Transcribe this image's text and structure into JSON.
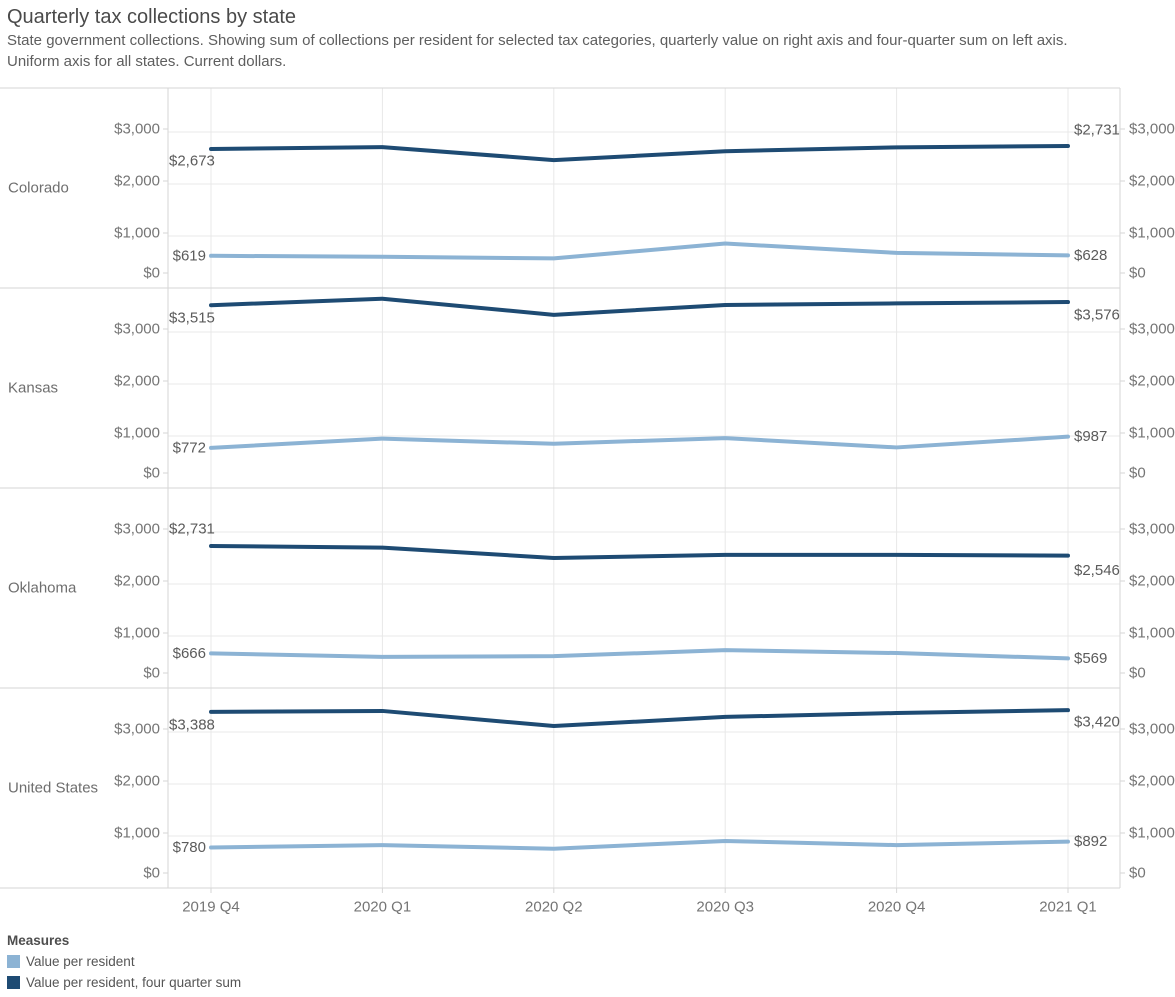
{
  "header": {
    "title": "Quarterly tax collections by state",
    "subtitle_line1": "State government collections. Showing sum of collections per resident for selected tax categories, quarterly value on right axis and four-quarter sum on left axis.",
    "subtitle_line2": "Uniform axis for all states. Current dollars."
  },
  "legend": {
    "title": "Measures",
    "items": [
      {
        "label": "Value per resident",
        "color": "#8CB3D4"
      },
      {
        "label": "Value per resident, four quarter sum",
        "color": "#1E4B73"
      }
    ]
  },
  "chart_data": {
    "type": "line",
    "x": [
      "2019 Q4",
      "2020 Q1",
      "2020 Q2",
      "2020 Q3",
      "2020 Q4",
      "2021 Q1"
    ],
    "y_ticks": [
      "$0",
      "$1,000",
      "$2,000",
      "$3,000"
    ],
    "ylim": [
      0,
      3846
    ],
    "grid": true,
    "legend_position": "bottom-left",
    "panels": [
      {
        "state": "Colorado",
        "series": [
          {
            "name": "Value per resident",
            "color": "#8CB3D4",
            "values": [
              619,
              600,
              570,
              855,
              675,
              628
            ],
            "first_label": "$619",
            "last_label": "$628"
          },
          {
            "name": "Value per resident, four quarter sum",
            "color": "#1E4B73",
            "values": [
              2673,
              2710,
              2460,
              2630,
              2705,
              2731
            ],
            "first_label": "$2,673",
            "last_label": "$2,731"
          }
        ]
      },
      {
        "state": "Kansas",
        "series": [
          {
            "name": "Value per resident",
            "color": "#8CB3D4",
            "values": [
              772,
              950,
              850,
              960,
              780,
              987
            ],
            "first_label": "$772",
            "last_label": "$987"
          },
          {
            "name": "Value per resident, four quarter sum",
            "color": "#1E4B73",
            "values": [
              3515,
              3640,
              3330,
              3520,
              3550,
              3576
            ],
            "first_label": "$3,515",
            "last_label": "$3,576"
          }
        ]
      },
      {
        "state": "Oklahoma",
        "series": [
          {
            "name": "Value per resident",
            "color": "#8CB3D4",
            "values": [
              666,
              598,
              612,
              728,
              672,
              569
            ],
            "first_label": "$666",
            "last_label": "$569"
          },
          {
            "name": "Value per resident, four quarter sum",
            "color": "#1E4B73",
            "values": [
              2731,
              2700,
              2500,
              2560,
              2560,
              2546
            ],
            "first_label": "$2,731",
            "last_label": "$2,546"
          }
        ]
      },
      {
        "state": "United States",
        "series": [
          {
            "name": "Value per resident",
            "color": "#8CB3D4",
            "values": [
              780,
              825,
              755,
              905,
              825,
              892
            ],
            "first_label": "$780",
            "last_label": "$892"
          },
          {
            "name": "Value per resident, four quarter sum",
            "color": "#1E4B73",
            "values": [
              3388,
              3405,
              3115,
              3290,
              3365,
              3420
            ],
            "first_label": "$3,388",
            "last_label": "$3,420"
          }
        ]
      }
    ]
  }
}
